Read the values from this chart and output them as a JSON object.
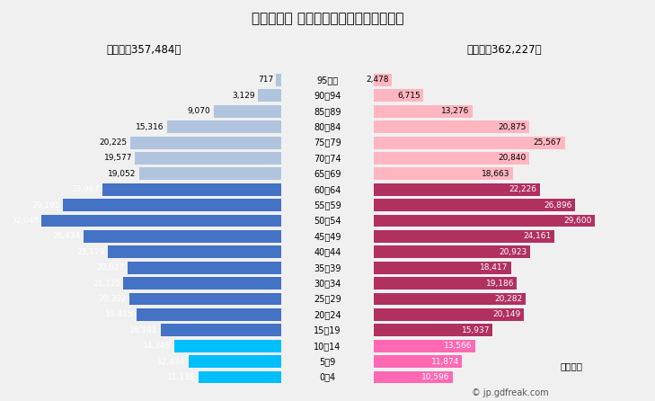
{
  "title": "２０２５年 相模原市の人口構成（予測）",
  "male_total": "男性計：357,484人",
  "female_total": "女性計：362,227人",
  "unit_label": "単位：人",
  "copyright": "© jp.gdfreak.com",
  "age_groups": [
    "0～4",
    "5～9",
    "10～14",
    "15～19",
    "20～24",
    "25～29",
    "30～34",
    "35～39",
    "40～44",
    "45～49",
    "50～54",
    "55～59",
    "60～64",
    "65～69",
    "70～74",
    "75～79",
    "80～84",
    "85～89",
    "90～94",
    "95歳～"
  ],
  "male_values": [
    11138,
    12434,
    14346,
    16191,
    19415,
    20302,
    21125,
    20627,
    23179,
    26434,
    32045,
    29195,
    23967,
    19052,
    19577,
    20225,
    15316,
    9070,
    3129,
    717
  ],
  "female_values": [
    10596,
    11874,
    13566,
    15937,
    20149,
    20282,
    19186,
    18417,
    20923,
    24161,
    29600,
    26896,
    22226,
    18663,
    20840,
    25567,
    20875,
    13276,
    6715,
    2478
  ],
  "male_colors": [
    "#00bfff",
    "#00bfff",
    "#00bfff",
    "#4472c4",
    "#4472c4",
    "#4472c4",
    "#4472c4",
    "#4472c4",
    "#4472c4",
    "#4472c4",
    "#4472c4",
    "#4472c4",
    "#4472c4",
    "#b0c4de",
    "#b0c4de",
    "#b0c4de",
    "#b0c4de",
    "#b0c4de",
    "#b0c4de",
    "#b0c4de"
  ],
  "female_colors": [
    "#ff69b4",
    "#ff69b4",
    "#ff69b4",
    "#b03060",
    "#b03060",
    "#b03060",
    "#b03060",
    "#b03060",
    "#b03060",
    "#b03060",
    "#b03060",
    "#b03060",
    "#b03060",
    "#ffb6c1",
    "#ffb6c1",
    "#ffb6c1",
    "#ffb6c1",
    "#ffb6c1",
    "#ffb6c1",
    "#ffb6c1"
  ],
  "background_color": "#f0f0f0",
  "xlim": 35000,
  "bar_height": 0.8
}
